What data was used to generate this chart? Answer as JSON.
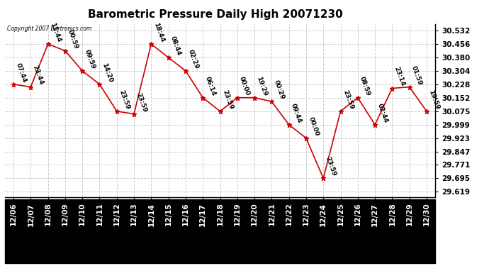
{
  "title": "Barometric Pressure Daily High 20071230",
  "copyright": "Copyright 2007 Bartronics.com",
  "background_color": "#ffffff",
  "plot_bg_color": "#ffffff",
  "grid_color": "#cccccc",
  "line_color": "#cc0000",
  "marker_color": "#cc0000",
  "text_color": "#000000",
  "points": [
    {
      "date": "12/06",
      "time": "07:44",
      "value": 30.228
    },
    {
      "date": "12/07",
      "time": "23:44",
      "value": 30.213
    },
    {
      "date": "12/08",
      "time": "11:44",
      "value": 30.456
    },
    {
      "date": "12/09",
      "time": "00:59",
      "value": 30.418
    },
    {
      "date": "12/10",
      "time": "09:59",
      "value": 30.304
    },
    {
      "date": "12/11",
      "time": "14:20",
      "value": 30.228
    },
    {
      "date": "12/12",
      "time": "23:59",
      "value": 30.075
    },
    {
      "date": "12/13",
      "time": "23:59",
      "value": 30.06
    },
    {
      "date": "12/14",
      "time": "18:44",
      "value": 30.456
    },
    {
      "date": "12/15",
      "time": "08:44",
      "value": 30.38
    },
    {
      "date": "12/16",
      "time": "02:29",
      "value": 30.304
    },
    {
      "date": "12/17",
      "time": "06:14",
      "value": 30.152
    },
    {
      "date": "12/18",
      "time": "23:59",
      "value": 30.075
    },
    {
      "date": "12/19",
      "time": "00:00",
      "value": 30.152
    },
    {
      "date": "12/20",
      "time": "19:29",
      "value": 30.152
    },
    {
      "date": "12/21",
      "time": "00:29",
      "value": 30.13
    },
    {
      "date": "12/22",
      "time": "09:44",
      "value": 29.999
    },
    {
      "date": "12/23",
      "time": "00:00",
      "value": 29.923
    },
    {
      "date": "12/24",
      "time": "23:59",
      "value": 29.695
    },
    {
      "date": "12/25",
      "time": "23:59",
      "value": 30.075
    },
    {
      "date": "12/26",
      "time": "08:59",
      "value": 30.152
    },
    {
      "date": "12/27",
      "time": "02:44",
      "value": 29.999
    },
    {
      "date": "12/28",
      "time": "23:14",
      "value": 30.205
    },
    {
      "date": "12/29",
      "time": "01:59",
      "value": 30.213
    },
    {
      "date": "12/30",
      "time": "19:59",
      "value": 30.075
    }
  ],
  "yticks": [
    29.619,
    29.695,
    29.771,
    29.847,
    29.923,
    29.999,
    30.075,
    30.152,
    30.228,
    30.304,
    30.38,
    30.456,
    30.532
  ],
  "ylim": [
    29.59,
    30.57
  ],
  "title_fontsize": 11,
  "tick_fontsize": 7.5,
  "label_fontsize": 6.5
}
